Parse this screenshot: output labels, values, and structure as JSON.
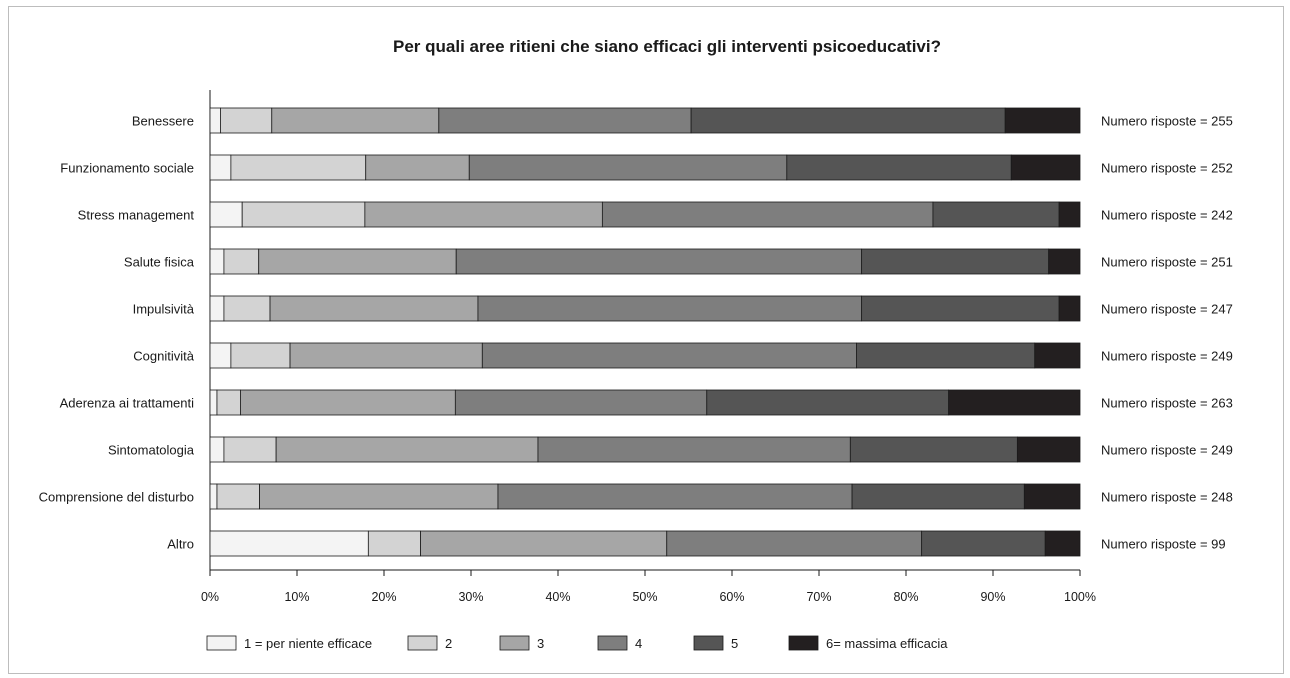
{
  "chart_data": {
    "type": "bar",
    "stacked": true,
    "orientation": "horizontal",
    "title": "Per quali aree ritieni che siano efficaci gli interventi psicoeducativi?",
    "categories": [
      "Benessere",
      "Funzionamento sociale",
      "Stress management",
      "Salute fisica",
      "Impulsività",
      "Cognitività",
      "Aderenza ai trattamenti",
      "Sintomatologia",
      "Comprensione del disturbo",
      "Altro"
    ],
    "responses": [
      "Numero risposte = 255",
      "Numero risposte = 252",
      "Numero risposte = 242",
      "Numero risposte = 251",
      "Numero risposte = 247",
      "Numero risposte = 249",
      "Numero risposte = 263",
      "Numero risposte = 249",
      "Numero risposte = 248",
      "Numero risposte = 99"
    ],
    "series": [
      {
        "name": "1 = per niente efficace",
        "color": "#f4f4f4",
        "values": [
          1.2,
          2.4,
          3.7,
          1.6,
          1.6,
          2.4,
          0.8,
          1.6,
          0.8,
          18.2
        ]
      },
      {
        "name": "2",
        "color": "#d3d3d3",
        "values": [
          5.9,
          15.5,
          14.1,
          4.0,
          5.3,
          6.8,
          2.7,
          6.0,
          4.9,
          6.0
        ]
      },
      {
        "name": "3",
        "color": "#a6a6a6",
        "values": [
          19.2,
          11.9,
          27.3,
          22.7,
          23.9,
          22.1,
          24.7,
          30.1,
          27.4,
          28.3
        ]
      },
      {
        "name": "4",
        "color": "#7e7e7e",
        "values": [
          29.0,
          36.5,
          38.0,
          46.6,
          44.1,
          43.0,
          28.9,
          35.9,
          40.7,
          29.3
        ]
      },
      {
        "name": "5",
        "color": "#555555",
        "values": [
          36.1,
          25.8,
          14.5,
          21.5,
          22.7,
          20.5,
          27.8,
          19.2,
          19.8,
          14.2
        ]
      },
      {
        "name": "6= massima efficacia",
        "color": "#231f20",
        "values": [
          8.6,
          7.9,
          2.4,
          3.6,
          2.4,
          5.2,
          15.1,
          7.2,
          6.4,
          4.0
        ]
      }
    ],
    "xlim": [
      0,
      100
    ],
    "xticks": [
      "0%",
      "10%",
      "20%",
      "30%",
      "40%",
      "50%",
      "60%",
      "70%",
      "80%",
      "90%",
      "100%"
    ],
    "xlabel": "",
    "ylabel": "",
    "legend": "bottom",
    "grid": false
  }
}
